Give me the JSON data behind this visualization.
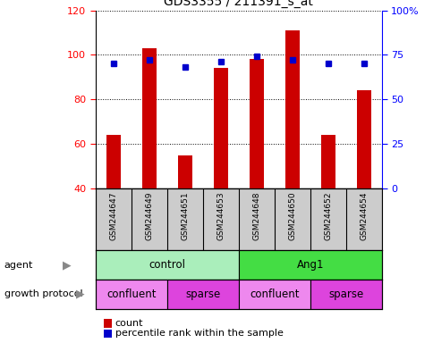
{
  "title": "GDS3355 / 211391_s_at",
  "samples": [
    "GSM244647",
    "GSM244649",
    "GSM244651",
    "GSM244653",
    "GSM244648",
    "GSM244650",
    "GSM244652",
    "GSM244654"
  ],
  "bar_heights": [
    64,
    103,
    55,
    94,
    98,
    111,
    64,
    84
  ],
  "percentile_ranks": [
    70,
    72,
    68,
    71,
    74,
    72,
    70,
    70
  ],
  "ylim_left": [
    40,
    120
  ],
  "ylim_right": [
    0,
    100
  ],
  "yticks_left": [
    40,
    60,
    80,
    100,
    120
  ],
  "yticks_right": [
    0,
    25,
    50,
    75,
    100
  ],
  "ytick_labels_right": [
    "0",
    "25",
    "50",
    "75",
    "100%"
  ],
  "bar_color": "#cc0000",
  "dot_color": "#0000cc",
  "agent_row": [
    {
      "label": "control",
      "start": 0,
      "end": 4,
      "color": "#aaeebb"
    },
    {
      "label": "Ang1",
      "start": 4,
      "end": 8,
      "color": "#44dd44"
    }
  ],
  "growth_row": [
    {
      "label": "confluent",
      "start": 0,
      "end": 2,
      "color": "#ee88ee"
    },
    {
      "label": "sparse",
      "start": 2,
      "end": 4,
      "color": "#dd44dd"
    },
    {
      "label": "confluent",
      "start": 4,
      "end": 6,
      "color": "#ee88ee"
    },
    {
      "label": "sparse",
      "start": 6,
      "end": 8,
      "color": "#dd44dd"
    }
  ],
  "agent_label": "agent",
  "growth_label": "growth protocol",
  "legend_count_label": "count",
  "legend_pct_label": "percentile rank within the sample",
  "xlabel_bg_color": "#cccccc",
  "figure_bg_color": "#ffffff"
}
